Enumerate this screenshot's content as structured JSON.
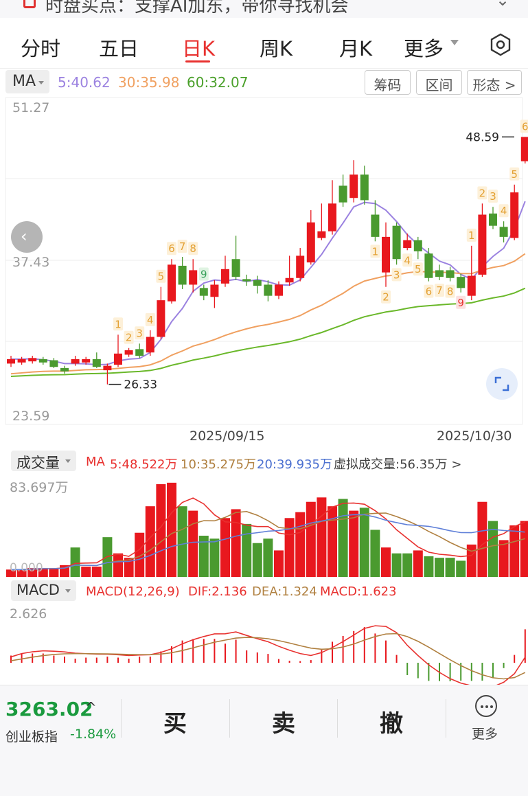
{
  "banner": {
    "text": "时盘买点：支撑AI加东，带你寻找机会"
  },
  "tabs": [
    {
      "label": "分时"
    },
    {
      "label": "五日"
    },
    {
      "label": "日K"
    },
    {
      "label": "周K"
    },
    {
      "label": "月K"
    },
    {
      "label": "更多"
    }
  ],
  "ma_header": {
    "selector": "MA",
    "ma5": "5:40.62",
    "ma30": "30:35.98",
    "ma60": "60:32.07",
    "btn_chips": "筹码",
    "btn_range": "区间",
    "btn_pattern": "形态 >"
  },
  "price_axis": {
    "top": "51.27",
    "mid": "37.43",
    "bottom": "23.59"
  },
  "annotations": {
    "high": "48.59",
    "low": "26.33"
  },
  "dates": {
    "d1": "2025/09/15",
    "d2": "2025/10/30"
  },
  "volume_header": {
    "selector": "成交量",
    "ma_label": "MA",
    "ma5": "5:48.522万",
    "ma10": "10:35.275万",
    "ma20": "20:39.935万",
    "virtual": "虚拟成交量:56.35万 >",
    "scale_top": "83.697万",
    "scale_zero": "0.000"
  },
  "macd_header": {
    "selector": "MACD",
    "params": "MACD(12,26,9)",
    "dif": "DIF:2.136",
    "dea": "DEA:1.324",
    "macd": "MACD:1.623",
    "scale_top": "2.626"
  },
  "bottom_bar": {
    "index_value": "3263.02",
    "index_name": "创业板指",
    "index_change": "-1.84%",
    "buy": "买",
    "sell": "卖",
    "cancel": "撤",
    "more": "更多"
  },
  "colors": {
    "up": "#e8181e",
    "down": "#4a9a2f",
    "ma5": "#9b82e0",
    "ma30": "#f0a060",
    "ma60": "#6ab82a",
    "accent": "#e8312f"
  },
  "chart_data": {
    "type": "candlestick",
    "x_labels": [
      "2025/09/15",
      "2025/10/30"
    ],
    "ylim": [
      23.59,
      51.27
    ],
    "candles": [
      {
        "o": 28.2,
        "c": 28.6,
        "h": 28.9,
        "l": 27.9
      },
      {
        "o": 28.3,
        "c": 28.6,
        "h": 28.8,
        "l": 28.1
      },
      {
        "o": 28.4,
        "c": 28.7,
        "h": 28.9,
        "l": 28.2
      },
      {
        "o": 28.6,
        "c": 28.3,
        "h": 28.8,
        "l": 28.1
      },
      {
        "o": 28.5,
        "c": 27.9,
        "h": 28.7,
        "l": 27.8
      },
      {
        "o": 27.8,
        "c": 27.5,
        "h": 28.0,
        "l": 27.3
      },
      {
        "o": 28.2,
        "c": 28.6,
        "h": 28.9,
        "l": 28.0
      },
      {
        "o": 28.3,
        "c": 28.6,
        "h": 28.8,
        "l": 28.1
      },
      {
        "o": 28.6,
        "c": 27.9,
        "h": 29.2,
        "l": 27.8
      },
      {
        "o": 27.6,
        "c": 28.0,
        "h": 28.2,
        "l": 26.33
      },
      {
        "o": 28.1,
        "c": 29.1,
        "h": 30.8,
        "l": 27.9
      },
      {
        "o": 29.0,
        "c": 29.4,
        "h": 29.6,
        "l": 28.8
      },
      {
        "o": 29.5,
        "c": 28.9,
        "h": 30.0,
        "l": 28.7
      },
      {
        "o": 29.2,
        "c": 30.6,
        "h": 31.2,
        "l": 28.9
      },
      {
        "o": 30.6,
        "c": 33.9,
        "h": 35.1,
        "l": 30.4
      },
      {
        "o": 33.8,
        "c": 37.1,
        "h": 37.6,
        "l": 33.6
      },
      {
        "o": 37.0,
        "c": 35.3,
        "h": 37.8,
        "l": 34.9
      },
      {
        "o": 35.3,
        "c": 36.6,
        "h": 37.6,
        "l": 34.6
      },
      {
        "o": 35.0,
        "c": 34.3,
        "h": 35.3,
        "l": 33.9
      },
      {
        "o": 34.2,
        "c": 35.3,
        "h": 35.7,
        "l": 33.2
      },
      {
        "o": 35.4,
        "c": 36.7,
        "h": 37.9,
        "l": 35.1
      },
      {
        "o": 37.6,
        "c": 36.0,
        "h": 39.7,
        "l": 35.7
      },
      {
        "o": 35.8,
        "c": 35.6,
        "h": 36.2,
        "l": 35.2
      },
      {
        "o": 35.7,
        "c": 35.2,
        "h": 36.1,
        "l": 34.5
      },
      {
        "o": 35.3,
        "c": 34.3,
        "h": 35.7,
        "l": 33.8
      },
      {
        "o": 34.3,
        "c": 35.3,
        "h": 35.6,
        "l": 34.0
      },
      {
        "o": 35.5,
        "c": 35.9,
        "h": 37.9,
        "l": 35.2
      },
      {
        "o": 35.9,
        "c": 37.9,
        "h": 38.6,
        "l": 35.6
      },
      {
        "o": 37.3,
        "c": 40.9,
        "h": 42.0,
        "l": 37.1
      },
      {
        "o": 39.5,
        "c": 40.1,
        "h": 42.6,
        "l": 39.3
      },
      {
        "o": 40.1,
        "c": 42.6,
        "h": 44.7,
        "l": 39.8
      },
      {
        "o": 44.2,
        "c": 42.7,
        "h": 45.2,
        "l": 42.3
      },
      {
        "o": 43.1,
        "c": 45.2,
        "h": 46.5,
        "l": 42.7
      },
      {
        "o": 45.2,
        "c": 42.9,
        "h": 46.0,
        "l": 42.5
      },
      {
        "o": 41.6,
        "c": 39.6,
        "h": 42.9,
        "l": 39.2
      },
      {
        "o": 36.4,
        "c": 39.6,
        "h": 40.9,
        "l": 35.1
      },
      {
        "o": 40.6,
        "c": 37.6,
        "h": 40.9,
        "l": 37.1
      },
      {
        "o": 38.6,
        "c": 39.3,
        "h": 39.9,
        "l": 38.4
      },
      {
        "o": 39.3,
        "c": 38.3,
        "h": 39.6,
        "l": 37.6
      },
      {
        "o": 38.1,
        "c": 35.9,
        "h": 38.6,
        "l": 35.6
      },
      {
        "o": 36.6,
        "c": 36.0,
        "h": 37.1,
        "l": 35.7
      },
      {
        "o": 36.6,
        "c": 35.9,
        "h": 36.9,
        "l": 35.6
      },
      {
        "o": 36.0,
        "c": 35.0,
        "h": 36.3,
        "l": 34.6
      },
      {
        "o": 34.3,
        "c": 36.1,
        "h": 38.8,
        "l": 33.9
      },
      {
        "o": 36.2,
        "c": 41.6,
        "h": 42.6,
        "l": 36.0
      },
      {
        "o": 41.7,
        "c": 40.6,
        "h": 42.3,
        "l": 40.3
      },
      {
        "o": 40.5,
        "c": 39.6,
        "h": 41.0,
        "l": 39.1
      },
      {
        "o": 39.5,
        "c": 43.6,
        "h": 44.3,
        "l": 39.3
      },
      {
        "o": 46.4,
        "c": 48.59,
        "h": 48.59,
        "l": 46.2
      }
    ],
    "td_labels": [
      {
        "i": 10,
        "v": "1"
      },
      {
        "i": 11,
        "v": "2"
      },
      {
        "i": 12,
        "v": "3"
      },
      {
        "i": 13,
        "v": "4"
      },
      {
        "i": 14,
        "v": "5"
      },
      {
        "i": 15,
        "v": "6"
      },
      {
        "i": 16,
        "v": "7"
      },
      {
        "i": 17,
        "v": "8"
      },
      {
        "i": 18,
        "v": "9",
        "alt": "green"
      },
      {
        "i": 34,
        "v": "1"
      },
      {
        "i": 35,
        "v": "2"
      },
      {
        "i": 36,
        "v": "3"
      },
      {
        "i": 37,
        "v": "4"
      },
      {
        "i": 38,
        "v": "5"
      },
      {
        "i": 39,
        "v": "6"
      },
      {
        "i": 40,
        "v": "7"
      },
      {
        "i": 41,
        "v": "8"
      },
      {
        "i": 42,
        "v": "9",
        "alt": "red"
      },
      {
        "i": 43,
        "v": "1"
      },
      {
        "i": 44,
        "v": "2"
      },
      {
        "i": 45,
        "v": "3"
      },
      {
        "i": 46,
        "v": "4"
      },
      {
        "i": 47,
        "v": "5"
      },
      {
        "i": 48,
        "v": "6"
      }
    ],
    "volumes": [
      {
        "v": 5,
        "u": 1
      },
      {
        "v": 5,
        "u": 1
      },
      {
        "v": 6,
        "u": 1
      },
      {
        "v": 6,
        "u": 1
      },
      {
        "v": 6,
        "u": 1
      },
      {
        "v": 8,
        "u": 1
      },
      {
        "v": 20,
        "u": 0
      },
      {
        "v": 7,
        "u": 1
      },
      {
        "v": 7,
        "u": 1
      },
      {
        "v": 27,
        "u": 0
      },
      {
        "v": 16,
        "u": 1
      },
      {
        "v": 13,
        "u": 1
      },
      {
        "v": 30,
        "u": 1
      },
      {
        "v": 48,
        "u": 1
      },
      {
        "v": 63,
        "u": 1
      },
      {
        "v": 64,
        "u": 1
      },
      {
        "v": 48,
        "u": 0
      },
      {
        "v": 45,
        "u": 1
      },
      {
        "v": 28,
        "u": 0
      },
      {
        "v": 26,
        "u": 0
      },
      {
        "v": 40,
        "u": 1
      },
      {
        "v": 46,
        "u": 1
      },
      {
        "v": 36,
        "u": 0
      },
      {
        "v": 23,
        "u": 0
      },
      {
        "v": 26,
        "u": 0
      },
      {
        "v": 18,
        "u": 1
      },
      {
        "v": 40,
        "u": 1
      },
      {
        "v": 44,
        "u": 1
      },
      {
        "v": 51,
        "u": 1
      },
      {
        "v": 54,
        "u": 1
      },
      {
        "v": 48,
        "u": 1
      },
      {
        "v": 53,
        "u": 0
      },
      {
        "v": 45,
        "u": 1
      },
      {
        "v": 47,
        "u": 0
      },
      {
        "v": 32,
        "u": 0
      },
      {
        "v": 20,
        "u": 1
      },
      {
        "v": 16,
        "u": 0
      },
      {
        "v": 16,
        "u": 0
      },
      {
        "v": 18,
        "u": 1
      },
      {
        "v": 14,
        "u": 0
      },
      {
        "v": 13,
        "u": 0
      },
      {
        "v": 13,
        "u": 0
      },
      {
        "v": 11,
        "u": 0
      },
      {
        "v": 22,
        "u": 1
      },
      {
        "v": 51,
        "u": 1
      },
      {
        "v": 38,
        "u": 0
      },
      {
        "v": 25,
        "u": 1
      },
      {
        "v": 35,
        "u": 1
      },
      {
        "v": 38,
        "u": 1
      }
    ],
    "macd_hist": [
      0.35,
      0.45,
      0.45,
      0.45,
      0.35,
      0.3,
      0.2,
      0.25,
      0.25,
      0.3,
      0.25,
      0.2,
      0.3,
      0.3,
      0.55,
      0.8,
      1.08,
      1.15,
      1.16,
      1.16,
      0.93,
      1.12,
      0.6,
      0.5,
      0.43,
      0.18,
      0.1,
      0.08,
      0.13,
      0.63,
      1.02,
      1.3,
      1.54,
      1.73,
      1.42,
      1.08,
      0.38,
      -0.6,
      -0.75,
      -0.88,
      -0.89,
      -0.9,
      -0.87,
      -0.88,
      -0.87,
      -0.75,
      -0.26,
      0.38,
      1.623
    ]
  }
}
